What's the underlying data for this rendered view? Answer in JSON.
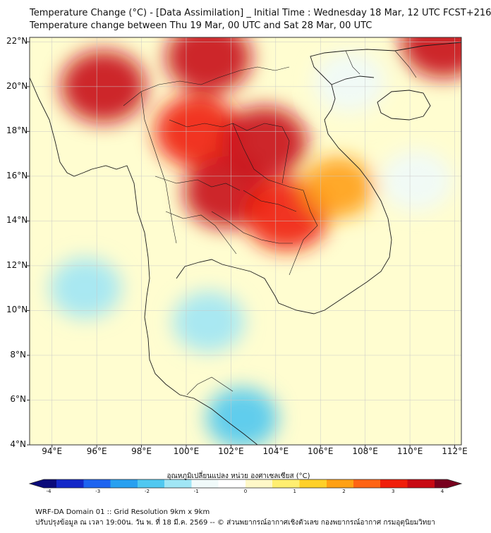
{
  "titles": {
    "line1": "Temperature Change (°C) - [Data Assimilation] _ Initial Time : Wednesday 18 Mar, 12 UTC FCST+216",
    "line2": "Temperature change between Thu 19 Mar, 00 UTC and Sat 28 Mar, 00 UTC"
  },
  "axes": {
    "lat_labels": [
      "22°N",
      "20°N",
      "18°N",
      "16°N",
      "14°N",
      "12°N",
      "10°N",
      "8°N",
      "6°N",
      "4°N"
    ],
    "lon_labels": [
      "94°E",
      "96°E",
      "98°E",
      "100°E",
      "102°E",
      "104°E",
      "106°E",
      "108°E",
      "110°E",
      "112°E"
    ],
    "lat_range": [
      4,
      22.2
    ],
    "lon_range": [
      93,
      112.3
    ]
  },
  "colorbar": {
    "label": "อุณหภูมิเปลี่ยนแปลง หน่วย องศาเซลเซียส (°C)",
    "ticks": [
      "-4",
      "-3",
      "-2",
      "-1",
      "0",
      "1",
      "2",
      "3",
      "4"
    ],
    "range": [
      -4,
      4
    ],
    "colors": [
      "#0a0a7a",
      "#1428c8",
      "#1e64f0",
      "#28a0f0",
      "#50c8f0",
      "#a0e6f5",
      "#f0fafa",
      "#ffffff",
      "#fff8c8",
      "#ffee70",
      "#ffd028",
      "#ffa014",
      "#ff6414",
      "#f01e0a",
      "#c80a14",
      "#78001e"
    ]
  },
  "footer": {
    "line1": "WRF-DA Domain 01 :: Grid Resolution 9km x 9km",
    "line2": "ปรับปรุงข้อมูล ณ เวลา 19:00น. วัน พ. ที่ 18 มี.ค. 2569 -- © ส่วนพยากรณ์อากาศเชิงตัวเลข กองพยากรณ์อากาศ กรมอุตุนิยมวิทยา"
  },
  "colors": {
    "background": "#fffdd0",
    "land_outline": "#1a1a1a",
    "grid": "#c8c8c8"
  },
  "map_field": {
    "description_units": "°C",
    "anomalies": [
      {
        "name": "burma-hot",
        "lon": 96.3,
        "lat": 20.0,
        "value": 3.2
      },
      {
        "name": "yunnan-hot",
        "lon": 101.0,
        "lat": 21.3,
        "value": 3.2
      },
      {
        "name": "n-thailand-hot",
        "lon": 100.5,
        "lat": 18.0,
        "value": 2.9
      },
      {
        "name": "laos-hot",
        "lon": 103.5,
        "lat": 17.5,
        "value": 3.4
      },
      {
        "name": "isan-hot",
        "lon": 101.8,
        "lat": 15.3,
        "value": 3.0
      },
      {
        "name": "cambodia-hot",
        "lon": 104.5,
        "lat": 14.3,
        "value": 2.6
      },
      {
        "name": "vietnam-warm",
        "lon": 106.8,
        "lat": 15.5,
        "value": 1.8
      },
      {
        "name": "guangxi-hot",
        "lon": 111.5,
        "lat": 22.0,
        "value": 3.0
      },
      {
        "name": "andaman-cool",
        "lon": 95.5,
        "lat": 11.0,
        "value": -1.3
      },
      {
        "name": "gulf-cool",
        "lon": 101.0,
        "lat": 9.5,
        "value": -1.2
      },
      {
        "name": "malaya-cool",
        "lon": 102.5,
        "lat": 5.2,
        "value": -1.6
      },
      {
        "name": "hainan-cool",
        "lon": 110.3,
        "lat": 15.8,
        "value": -1.0
      },
      {
        "name": "gulf-tonkin-cool",
        "lon": 107.3,
        "lat": 20.2,
        "value": -1.0
      }
    ]
  }
}
